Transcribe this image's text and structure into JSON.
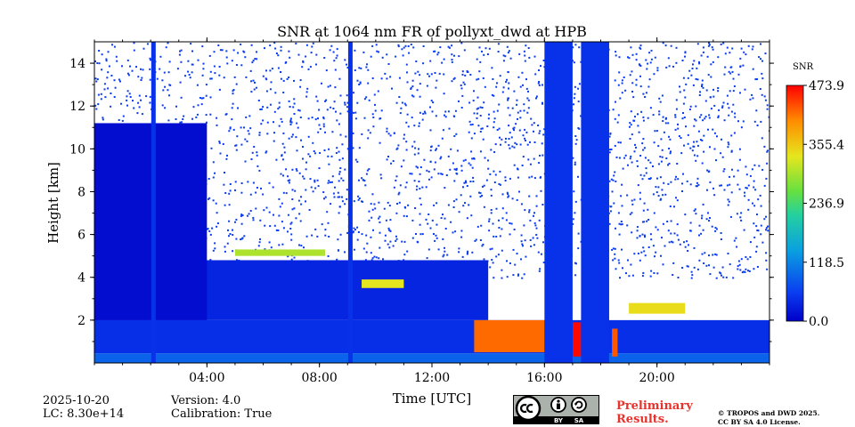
{
  "chart_data": {
    "type": "heatmap",
    "title": "SNR at 1064 nm FR of pollyxt_dwd at HPB",
    "xlabel": "Time [UTC]",
    "ylabel": "Height [km]",
    "x_range_hours": [
      0,
      24
    ],
    "ylim": [
      0,
      15
    ],
    "x_ticks": [
      "04:00",
      "08:00",
      "12:00",
      "16:00",
      "20:00"
    ],
    "x_tick_values_hours": [
      4,
      8,
      12,
      16,
      20
    ],
    "y_ticks": [
      "2",
      "4",
      "6",
      "8",
      "10",
      "12",
      "14"
    ],
    "y_tick_values": [
      2,
      4,
      6,
      8,
      10,
      12,
      14
    ],
    "colorbar": {
      "label": "SNR",
      "range": [
        0.0,
        473.9
      ],
      "ticks": [
        "0.0",
        "118.5",
        "236.9",
        "355.4",
        "473.9"
      ],
      "colormap": "jet"
    },
    "layers": [
      {
        "name": "surface",
        "t0": 0,
        "t1": 24,
        "h0": 0,
        "h1": 0.45,
        "snr": 90
      },
      {
        "name": "boundary-layer",
        "t0": 0,
        "t1": 24,
        "h0": 0.45,
        "h1": 2.0,
        "snr": 45
      },
      {
        "name": "aerosol",
        "t0": 0,
        "t1": 14,
        "h0": 2.0,
        "h1": 4.8,
        "snr": 35
      },
      {
        "name": "cloud",
        "t0": 0,
        "t1": 4.0,
        "h0": 2.0,
        "h1": 11.2,
        "snr": 12
      },
      {
        "name": "cloud",
        "t0": 5.0,
        "t1": 8.2,
        "h0": 5.0,
        "h1": 5.3,
        "snr": 300
      },
      {
        "name": "cloud",
        "t0": 9.5,
        "t1": 11.0,
        "h0": 3.5,
        "h1": 3.9,
        "snr": 330
      },
      {
        "name": "cloud",
        "t0": 13.5,
        "t1": 16.0,
        "h0": 0.5,
        "h1": 2.0,
        "snr": 420
      },
      {
        "name": "cloud",
        "t0": 17.0,
        "t1": 17.3,
        "h0": 0.3,
        "h1": 1.9,
        "snr": 470
      },
      {
        "name": "cloud",
        "t0": 18.4,
        "t1": 18.6,
        "h0": 0.3,
        "h1": 1.6,
        "snr": 430
      },
      {
        "name": "cloud",
        "t0": 19.0,
        "t1": 21.0,
        "h0": 2.3,
        "h1": 2.8,
        "snr": 340
      }
    ],
    "blocked_periods_hours": [
      [
        16.0,
        17.0
      ],
      [
        17.3,
        18.3
      ]
    ],
    "vertical_features_hours": [
      2.1,
      9.1
    ]
  },
  "footer": {
    "date": "2025-10-20",
    "lc": "LC: 8.30e+14",
    "version": "Version: 4.0",
    "calibration": "Calibration: True",
    "preliminary_1": "Preliminary",
    "preliminary_2": "Results.",
    "copyright_1": "© TROPOS and DWD 2025.",
    "copyright_2": "CC BY SA 4.0 License.",
    "license_badge": {
      "icons": [
        "cc-icon",
        "by-icon",
        "sa-icon"
      ],
      "labels": [
        "BY",
        "SA"
      ]
    }
  }
}
